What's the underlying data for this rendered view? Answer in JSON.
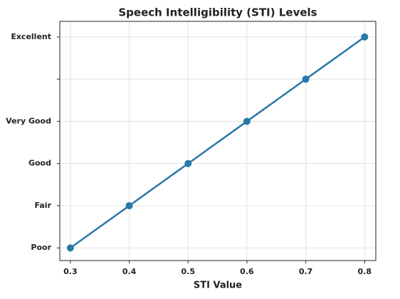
{
  "chart_data": {
    "type": "line",
    "title": "Speech Intelligibility (STI) Levels",
    "x_label": "STI Value",
    "x": [
      0.3,
      0.4,
      0.5,
      0.6,
      0.7,
      0.8
    ],
    "series": [
      {
        "name": "STI",
        "color": "#2a78a8",
        "values": [
          0,
          1,
          2,
          3,
          4,
          5
        ]
      }
    ],
    "xlim": [
      0.282,
      0.819
    ],
    "xticks": [
      0.3,
      0.4,
      0.5,
      0.6,
      0.7,
      0.8
    ],
    "ylim": [
      -0.3,
      5.37
    ],
    "yticks": [
      {
        "value": 0,
        "label": "Poor"
      },
      {
        "value": 1,
        "label": "Fair"
      },
      {
        "value": 2,
        "label": "Good"
      },
      {
        "value": 3,
        "label": "Very Good"
      },
      {
        "value": 4,
        "label": null
      },
      {
        "value": 5,
        "label": "Excellent"
      }
    ],
    "grid": true
  }
}
